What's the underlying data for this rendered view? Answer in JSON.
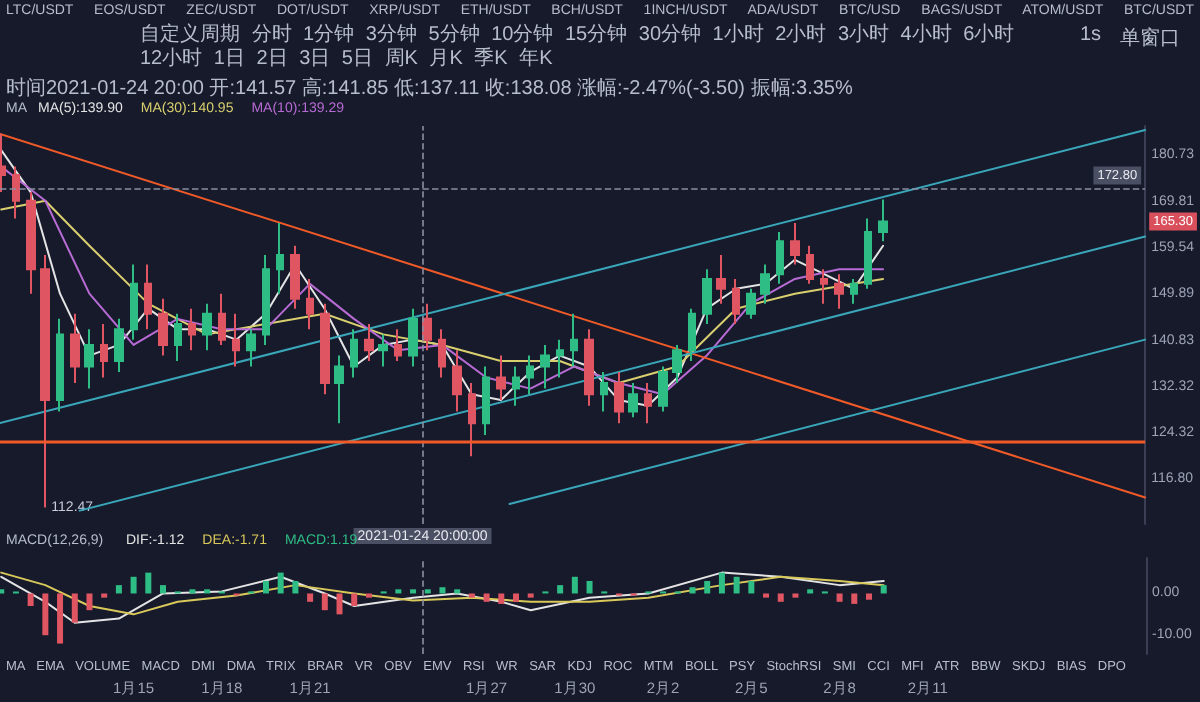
{
  "chart_data": [
    {
      "type": "candlestick",
      "legend_title": "MA",
      "legend": "top left",
      "grid": false,
      "log": true,
      "marker": "none",
      "line_style": "solid",
      "tick_labels": "y",
      "annotations": [
        "LTC/USDT EOS/USDT ZEC/USDT DOT/USDT XRP/USDT ETH/USDT BCH/USDT 1INCH/USDT ADA/USDT BTC/USD BAGS/USDT ATOM/USDT BTC/USDT",
        "自定义周期 分时 1分钟 3分钟 5分钟 10分钟 15分钟 30分钟 1小时 2小时 3小时 4小时 6小时 12小时 1日 2日 3日 5日 周K 月K 季K 年K",
        "1s",
        "单窗口",
        "时间2021-01-24 20:00 开:141.57 高:141.85 低:137.11 收:138.08 涨幅:-2.47%(-3.50) 振幅:3.35%",
        {
          "text": "112.47",
          "x": "2021-01-12T00:00",
          "y": 112.47
        },
        {
          "text": "165.30",
          "y": 165.3
        }
      ],
      "xlim": [
        "2021-01-10T11:00",
        "2021-02-18T10:00"
      ],
      "ylim": [
        110,
        188
      ],
      "yticks": [
        {
          "value": 116.8,
          "label": "116.80"
        },
        {
          "value": 124.32,
          "label": "124.32"
        },
        {
          "value": 132.32,
          "label": "132.32"
        },
        {
          "value": 140.83,
          "label": "140.83"
        },
        {
          "value": 149.89,
          "label": "149.89"
        },
        {
          "value": 159.54,
          "label": "159.54"
        },
        {
          "value": 169.81,
          "label": "169.81"
        },
        {
          "value": 180.73,
          "label": "180.73"
        }
      ],
      "x": [
        "2021-01-10T12:00",
        "2021-01-11T00:00",
        "2021-01-11T12:00",
        "2021-01-12T00:00",
        "2021-01-12T12:00",
        "2021-01-13T00:00",
        "2021-01-13T12:00",
        "2021-01-14T00:00",
        "2021-01-14T12:00",
        "2021-01-15T00:00",
        "2021-01-15T12:00",
        "2021-01-16T00:00",
        "2021-01-16T12:00",
        "2021-01-17T00:00",
        "2021-01-17T12:00",
        "2021-01-18T00:00",
        "2021-01-18T12:00",
        "2021-01-19T00:00",
        "2021-01-19T12:00",
        "2021-01-20T00:00",
        "2021-01-20T12:00",
        "2021-01-21T00:00",
        "2021-01-21T12:00",
        "2021-01-22T00:00",
        "2021-01-22T12:00",
        "2021-01-23T00:00",
        "2021-01-23T12:00",
        "2021-01-24T00:00",
        "2021-01-24T12:00",
        "2021-01-25T00:00",
        "2021-01-25T12:00",
        "2021-01-26T00:00",
        "2021-01-26T12:00",
        "2021-01-27T00:00",
        "2021-01-27T12:00",
        "2021-01-28T00:00",
        "2021-01-28T12:00",
        "2021-01-29T00:00",
        "2021-01-29T12:00",
        "2021-01-30T00:00",
        "2021-01-30T12:00",
        "2021-01-31T00:00",
        "2021-01-31T12:00",
        "2021-02-01T00:00",
        "2021-02-01T12:00",
        "2021-02-02T00:00",
        "2021-02-02T12:00",
        "2021-02-03T00:00",
        "2021-02-03T12:00",
        "2021-02-04T00:00",
        "2021-02-04T12:00",
        "2021-02-05T00:00",
        "2021-02-05T12:00",
        "2021-02-06T00:00",
        "2021-02-06T12:00",
        "2021-02-07T00:00",
        "2021-02-07T12:00",
        "2021-02-08T00:00",
        "2021-02-08T12:00",
        "2021-02-09T00:00",
        "2021-02-09T12:00"
      ],
      "ohlc": [
        [
          178,
          186,
          172,
          176
        ],
        [
          176,
          178,
          166,
          170
        ],
        [
          170,
          172,
          150,
          155
        ],
        [
          155,
          158,
          112.47,
          130
        ],
        [
          130,
          145,
          128,
          142
        ],
        [
          142,
          146,
          133,
          136
        ],
        [
          136,
          143,
          132,
          140
        ],
        [
          140,
          144,
          134,
          137
        ],
        [
          137,
          145,
          135,
          143
        ],
        [
          143,
          156,
          141,
          152
        ],
        [
          152,
          156,
          143,
          146
        ],
        [
          146,
          149,
          138,
          140
        ],
        [
          140,
          146,
          137,
          144
        ],
        [
          144,
          147,
          139,
          142
        ],
        [
          142,
          148,
          139,
          146
        ],
        [
          146,
          150,
          140,
          141
        ],
        [
          141,
          146,
          136,
          139
        ],
        [
          139,
          143,
          136,
          142
        ],
        [
          142,
          158,
          140,
          155
        ],
        [
          155,
          165,
          150,
          158
        ],
        [
          158,
          160,
          147,
          149
        ],
        [
          149,
          153,
          143,
          146
        ],
        [
          146,
          148,
          131,
          133
        ],
        [
          133,
          138,
          126,
          136
        ],
        [
          136,
          143,
          134,
          141
        ],
        [
          141,
          144,
          137,
          139
        ],
        [
          139,
          142,
          136,
          140
        ],
        [
          140,
          143,
          137,
          138
        ],
        [
          138,
          147,
          136,
          145
        ],
        [
          145,
          148,
          139,
          141
        ],
        [
          141,
          143,
          134,
          136
        ],
        [
          136,
          139,
          128,
          131
        ],
        [
          131,
          133,
          120.5,
          126
        ],
        [
          126,
          136,
          124,
          134
        ],
        [
          134,
          138,
          130,
          132
        ],
        [
          132,
          136,
          129,
          134
        ],
        [
          134,
          138,
          131,
          136
        ],
        [
          136,
          140,
          132,
          138
        ],
        [
          138,
          141,
          134,
          139
        ],
        [
          139,
          146,
          136,
          141
        ],
        [
          141,
          143,
          129,
          131
        ],
        [
          131,
          135,
          128,
          133
        ],
        [
          133,
          135,
          126,
          128
        ],
        [
          128,
          133,
          127,
          131
        ],
        [
          131,
          133,
          126,
          129
        ],
        [
          129,
          136,
          128,
          135
        ],
        [
          135,
          140,
          133,
          139
        ],
        [
          139,
          147,
          137,
          146
        ],
        [
          146,
          155,
          144,
          153
        ],
        [
          153,
          158,
          148,
          151
        ],
        [
          151,
          153,
          144,
          146
        ],
        [
          146,
          151,
          145,
          150
        ],
        [
          150,
          156,
          148,
          154
        ],
        [
          154,
          163,
          152,
          161
        ],
        [
          161,
          165,
          156,
          158
        ],
        [
          158,
          160,
          152,
          153
        ],
        [
          153,
          155,
          148,
          152
        ],
        [
          152,
          154,
          147,
          150
        ],
        [
          150,
          153,
          148,
          152
        ],
        [
          152,
          166,
          151,
          163
        ],
        [
          163,
          170.3,
          161,
          165.3
        ]
      ],
      "series": [
        {
          "name": "MA(5):139.90",
          "type": "line",
          "color": "#e4e4e4",
          "x": [
            "2021-01-10T12:00",
            "2021-01-11T12:00",
            "2021-01-12T12:00",
            "2021-01-13T12:00",
            "2021-01-14T12:00",
            "2021-01-15T12:00",
            "2021-01-16T12:00",
            "2021-01-17T12:00",
            "2021-01-18T12:00",
            "2021-01-19T12:00",
            "2021-01-20T12:00",
            "2021-01-21T12:00",
            "2021-01-22T12:00",
            "2021-01-23T12:00",
            "2021-01-24T12:00",
            "2021-01-25T12:00",
            "2021-01-26T12:00",
            "2021-01-27T12:00",
            "2021-01-28T12:00",
            "2021-01-29T12:00",
            "2021-01-30T12:00",
            "2021-01-31T12:00",
            "2021-02-01T12:00",
            "2021-02-02T12:00",
            "2021-02-03T12:00",
            "2021-02-04T12:00",
            "2021-02-05T12:00",
            "2021-02-06T12:00",
            "2021-02-07T12:00",
            "2021-02-08T12:00",
            "2021-02-09T12:00"
          ],
          "values": [
            182,
            172,
            150,
            138,
            140,
            147,
            143,
            143,
            141,
            146,
            156,
            147,
            136,
            140,
            141,
            140,
            131,
            130,
            135,
            138,
            136,
            130,
            129,
            134,
            147,
            151,
            152,
            157,
            154,
            151,
            160
          ]
        },
        {
          "name": "MA(30):140.95",
          "type": "line",
          "color": "#d9cf6e",
          "x": [
            "2021-01-10T12:00",
            "2021-01-12T00:00",
            "2021-01-13T12:00",
            "2021-01-15T12:00",
            "2021-01-17T12:00",
            "2021-01-19T12:00",
            "2021-01-21T12:00",
            "2021-01-23T12:00",
            "2021-01-25T12:00",
            "2021-01-27T12:00",
            "2021-01-29T12:00",
            "2021-01-31T12:00",
            "2021-02-02T12:00",
            "2021-02-04T12:00",
            "2021-02-06T12:00",
            "2021-02-08T12:00",
            "2021-02-09T12:00"
          ],
          "values": [
            168,
            170,
            160,
            148,
            142,
            144,
            146,
            142,
            140,
            137,
            137,
            133,
            136,
            147,
            150,
            152,
            153
          ]
        },
        {
          "name": "MA(10):139.29",
          "type": "line",
          "color": "#b86bd4",
          "x": [
            "2021-01-10T12:00",
            "2021-01-12T00:00",
            "2021-01-13T12:00",
            "2021-01-15T00:00",
            "2021-01-16T12:00",
            "2021-01-18T00:00",
            "2021-01-19T12:00",
            "2021-01-21T00:00",
            "2021-01-22T12:00",
            "2021-01-24T00:00",
            "2021-01-25T12:00",
            "2021-01-27T00:00",
            "2021-01-28T12:00",
            "2021-01-30T00:00",
            "2021-01-31T12:00",
            "2021-02-02T00:00",
            "2021-02-03T12:00",
            "2021-02-05T00:00",
            "2021-02-06T12:00",
            "2021-02-08T00:00",
            "2021-02-09T12:00"
          ],
          "values": [
            178,
            170,
            150,
            140,
            145,
            143,
            143,
            152,
            145,
            139,
            140,
            134,
            132,
            136,
            133,
            131,
            138,
            148,
            153,
            155,
            155
          ]
        },
        {
          "type": "line",
          "color": "#f05a28",
          "x": [
            "2021-01-10T11:00",
            "2021-02-18T10:00"
          ],
          "values": [
            186,
            114
          ]
        },
        {
          "type": "line",
          "color": "#3aa6b9",
          "x": [
            "2021-01-10T11:00",
            "2021-02-18T10:00"
          ],
          "values": [
            126,
            187
          ]
        },
        {
          "type": "line",
          "color": "#3aa6b9",
          "x": [
            "2021-01-13T04:00",
            "2021-02-18T10:00"
          ],
          "values": [
            112,
            162
          ]
        },
        {
          "type": "line",
          "color": "#3aa6b9",
          "x": [
            "2021-01-27T19:00",
            "2021-02-18T10:00"
          ],
          "values": [
            113,
            141
          ]
        }
      ],
      "ref_lines": [
        {
          "axis": "x",
          "value": "2021-01-24T20:00",
          "label": "2021-01-24 20:00:00",
          "line_style": "dashed",
          "color": "#8a8fa3"
        },
        {
          "axis": "y",
          "value": 172.8,
          "label": "172.80",
          "line_style": "dashed",
          "color": "#8a8fa3"
        },
        {
          "axis": "y",
          "value": 123,
          "color": "#f05a28"
        }
      ]
    },
    {
      "type": "bar",
      "legend_title": "MACD(12,26,9)",
      "legend": "top left",
      "grid": false,
      "marker": "none",
      "line_style": "solid",
      "annotations": [
        "MA EMA VOLUME MACD DMI DMA TRIX BRAR VR OBV EMV RSI WR SAR KDJ ROC MTM BOLL PSY StochRSI SMI CCI MFI ATR BBW SKDJ BIAS DPO"
      ],
      "xlim": [
        "2021-01-10T11:00",
        "2021-02-18T10:00"
      ],
      "xticks": [
        {
          "value": "2021-01-15",
          "label": "1月15"
        },
        {
          "value": "2021-01-18",
          "label": "1月18"
        },
        {
          "value": "2021-01-21",
          "label": "1月21"
        },
        {
          "value": "2021-01-27",
          "label": "1月27"
        },
        {
          "value": "2021-01-30",
          "label": "1月30"
        },
        {
          "value": "2021-02-02",
          "label": "2月2"
        },
        {
          "value": "2021-02-05",
          "label": "2月5"
        },
        {
          "value": "2021-02-08",
          "label": "2月8"
        },
        {
          "value": "2021-02-11",
          "label": "2月11"
        }
      ],
      "ylim": [
        -14.5,
        8.5
      ],
      "yticks": [
        {
          "value": -10,
          "label": "-10.00"
        },
        {
          "value": 0,
          "label": "0.00"
        }
      ],
      "x": [
        "2021-01-10T12:00",
        "2021-01-11T00:00",
        "2021-01-11T12:00",
        "2021-01-12T00:00",
        "2021-01-12T12:00",
        "2021-01-13T00:00",
        "2021-01-13T12:00",
        "2021-01-14T00:00",
        "2021-01-14T12:00",
        "2021-01-15T00:00",
        "2021-01-15T12:00",
        "2021-01-16T00:00",
        "2021-01-16T12:00",
        "2021-01-17T00:00",
        "2021-01-17T12:00",
        "2021-01-18T00:00",
        "2021-01-18T12:00",
        "2021-01-19T00:00",
        "2021-01-19T12:00",
        "2021-01-20T00:00",
        "2021-01-20T12:00",
        "2021-01-21T00:00",
        "2021-01-21T12:00",
        "2021-01-22T00:00",
        "2021-01-22T12:00",
        "2021-01-23T00:00",
        "2021-01-23T12:00",
        "2021-01-24T00:00",
        "2021-01-24T12:00",
        "2021-01-25T00:00",
        "2021-01-25T12:00",
        "2021-01-26T00:00",
        "2021-01-26T12:00",
        "2021-01-27T00:00",
        "2021-01-27T12:00",
        "2021-01-28T00:00",
        "2021-01-28T12:00",
        "2021-01-29T00:00",
        "2021-01-29T12:00",
        "2021-01-30T00:00",
        "2021-01-30T12:00",
        "2021-01-31T00:00",
        "2021-01-31T12:00",
        "2021-02-01T00:00",
        "2021-02-01T12:00",
        "2021-02-02T00:00",
        "2021-02-02T12:00",
        "2021-02-03T00:00",
        "2021-02-03T12:00",
        "2021-02-04T00:00",
        "2021-02-04T12:00",
        "2021-02-05T00:00",
        "2021-02-05T12:00",
        "2021-02-06T00:00",
        "2021-02-06T12:00",
        "2021-02-07T00:00",
        "2021-02-07T12:00",
        "2021-02-08T00:00",
        "2021-02-08T12:00",
        "2021-02-09T00:00",
        "2021-02-09T12:00"
      ],
      "series": [
        {
          "name": "DIF:-1.12",
          "type": "line",
          "color": "#e4e4e4",
          "x": [
            "2021-01-10T12:00",
            "2021-01-12T00:00",
            "2021-01-13T00:00",
            "2021-01-14T12:00",
            "2021-01-16T00:00",
            "2021-01-18T00:00",
            "2021-01-20T00:00",
            "2021-01-21T12:00",
            "2021-01-22T12:00",
            "2021-01-24T12:00",
            "2021-01-26T00:00",
            "2021-01-27T12:00",
            "2021-01-28T12:00",
            "2021-01-30T12:00",
            "2021-02-01T12:00",
            "2021-02-04T00:00",
            "2021-02-06T00:00",
            "2021-02-08T00:00",
            "2021-02-09T12:00"
          ],
          "values": [
            4,
            -2,
            -7,
            -6,
            0,
            0.5,
            4,
            0,
            -3,
            -1,
            0,
            -2,
            -4,
            -1,
            0,
            5,
            4,
            2,
            3
          ]
        },
        {
          "name": "DEA:-1.71",
          "type": "line",
          "color": "#d9c85a",
          "x": [
            "2021-01-10T12:00",
            "2021-01-12T00:00",
            "2021-01-13T12:00",
            "2021-01-15T00:00",
            "2021-01-16T12:00",
            "2021-01-18T12:00",
            "2021-01-20T12:00",
            "2021-01-22T12:00",
            "2021-01-24T12:00",
            "2021-01-26T12:00",
            "2021-01-28T12:00",
            "2021-01-30T12:00",
            "2021-02-01T12:00",
            "2021-02-04T00:00",
            "2021-02-06T00:00",
            "2021-02-08T00:00",
            "2021-02-09T12:00"
          ],
          "values": [
            5,
            2,
            -3,
            -5,
            -2,
            -0.5,
            2,
            0,
            -1.7,
            -1,
            -2,
            -2,
            -1,
            2,
            4,
            3,
            2
          ]
        },
        {
          "name": "MACD:1.19",
          "type": "bar",
          "color": "#2ebd85",
          "values": [
            1,
            0.5,
            -3,
            -10,
            -12,
            -7,
            -4,
            -1,
            2,
            4,
            5,
            2,
            0.5,
            1,
            1,
            0.5,
            -0.5,
            0.5,
            3,
            5,
            3,
            -2,
            -4,
            -5,
            -3,
            -1,
            0.5,
            1,
            1,
            1,
            1.5,
            1,
            -1,
            -2,
            -2.5,
            -2,
            -1,
            0.5,
            2,
            4,
            3,
            0.5,
            -0.5,
            -0.5,
            0.5,
            0.5,
            0.5,
            1.5,
            3,
            5,
            4,
            3,
            -1,
            -2,
            -1,
            1,
            0.5,
            -2,
            -2.5,
            -1.5,
            2
          ],
          "colors": [
            "#2ebd85",
            "#2ebd85",
            "#e05562",
            "#e05562",
            "#e05562",
            "#e05562",
            "#e05562",
            "#e05562",
            "#2ebd85",
            "#2ebd85",
            "#2ebd85",
            "#2ebd85",
            "#2ebd85",
            "#2ebd85",
            "#2ebd85",
            "#2ebd85",
            "#e05562",
            "#2ebd85",
            "#2ebd85",
            "#2ebd85",
            "#2ebd85",
            "#e05562",
            "#e05562",
            "#e05562",
            "#e05562",
            "#e05562",
            "#2ebd85",
            "#2ebd85",
            "#2ebd85",
            "#2ebd85",
            "#2ebd85",
            "#2ebd85",
            "#e05562",
            "#e05562",
            "#e05562",
            "#e05562",
            "#e05562",
            "#2ebd85",
            "#2ebd85",
            "#2ebd85",
            "#2ebd85",
            "#2ebd85",
            "#e05562",
            "#e05562",
            "#2ebd85",
            "#2ebd85",
            "#2ebd85",
            "#2ebd85",
            "#2ebd85",
            "#2ebd85",
            "#2ebd85",
            "#2ebd85",
            "#e05562",
            "#e05562",
            "#e05562",
            "#2ebd85",
            "#2ebd85",
            "#e05562",
            "#e05562",
            "#e05562",
            "#2ebd85"
          ]
        }
      ],
      "ref_lines": [
        {
          "axis": "x",
          "value": "2021-01-24T20:00",
          "line_style": "dashed",
          "color": "#8a8fa3"
        }
      ]
    }
  ]
}
